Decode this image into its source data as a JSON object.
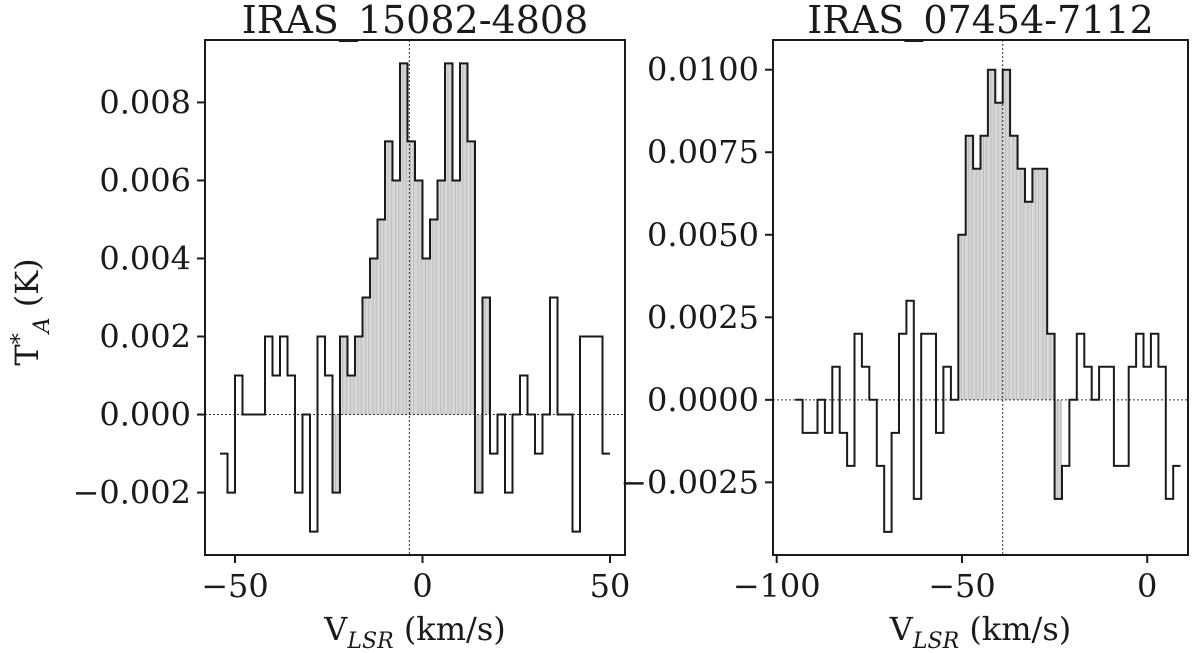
{
  "figure": {
    "ylabel": "T",
    "ylabel_sup": "*",
    "ylabel_sub": "A",
    "ylabel_unit": " (K)"
  },
  "chart_data": [
    {
      "type": "line",
      "step": "mid",
      "title": "IRAS_15082-4808",
      "xlabel": "V",
      "xlabel_sub": "LSR",
      "xlabel_unit": " (km/s)",
      "xlim": [
        -58,
        54
      ],
      "ylim": [
        -0.0036,
        0.0096
      ],
      "xticks": [
        -50,
        0,
        50
      ],
      "xtick_labels": [
        "−50",
        "0",
        "50"
      ],
      "yticks": [
        -0.002,
        0,
        0.002,
        0.004,
        0.006,
        0.008
      ],
      "ytick_labels": [
        "−0.002",
        "0.000",
        "0.002",
        "0.004",
        "0.006",
        "0.008"
      ],
      "vline": -3.5,
      "hline": 0,
      "fill_range": [
        -24,
        17
      ],
      "x": [
        -53,
        -51,
        -49,
        -47,
        -45,
        -43,
        -41,
        -39,
        -37,
        -35,
        -33,
        -31,
        -29,
        -27,
        -25,
        -23,
        -21,
        -19,
        -17,
        -15,
        -13,
        -11,
        -9,
        -7,
        -5,
        -3,
        -1,
        1,
        3,
        5,
        7,
        9,
        11,
        13,
        15,
        17,
        19,
        21,
        23,
        25,
        27,
        29,
        31,
        33,
        35,
        37,
        39,
        41,
        43,
        45,
        47,
        49
      ],
      "y": [
        -0.001,
        -0.002,
        0.001,
        0,
        0,
        0,
        0.002,
        0.001,
        0.002,
        0.001,
        -0.002,
        0,
        -0.003,
        0.002,
        0.001,
        -0.002,
        0.002,
        0.001,
        0.002,
        0.003,
        0.004,
        0.005,
        0.007,
        0.006,
        0.009,
        0.007,
        0.006,
        0.004,
        0.005,
        0.006,
        0.009,
        0.006,
        0.009,
        0.007,
        -0.002,
        0.003,
        -0.001,
        0,
        -0.002,
        0,
        0.001,
        0,
        -0.001,
        0,
        0.003,
        0,
        0,
        -0.003,
        0.002,
        0.002,
        0.002,
        -0.001
      ]
    },
    {
      "type": "line",
      "step": "mid",
      "title": "IRAS_07454-7112",
      "xlabel": "V",
      "xlabel_sub": "LSR",
      "xlabel_unit": " (km/s)",
      "xlim": [
        -101,
        11
      ],
      "ylim": [
        -0.0047,
        0.0109
      ],
      "xticks": [
        -100,
        -50,
        0
      ],
      "xtick_labels": [
        "−100",
        "−50",
        "0"
      ],
      "yticks": [
        -0.0025,
        0,
        0.0025,
        0.005,
        0.0075,
        0.01
      ],
      "ytick_labels": [
        "−0.0025",
        "0.0000",
        "0.0025",
        "0.0050",
        "0.0075",
        "0.0100"
      ],
      "vline": -39,
      "hline": 0,
      "fill_range": [
        -51,
        -23
      ],
      "x": [
        -94,
        -92,
        -90,
        -88,
        -86,
        -84,
        -82,
        -80,
        -78,
        -76,
        -74,
        -72,
        -70,
        -68,
        -66,
        -64,
        -62,
        -60,
        -58,
        -56,
        -54,
        -52,
        -50,
        -48,
        -46,
        -44,
        -42,
        -40,
        -38,
        -36,
        -34,
        -32,
        -30,
        -28,
        -26,
        -24,
        -22,
        -20,
        -18,
        -16,
        -14,
        -12,
        -10,
        -8,
        -6,
        -4,
        -2,
        0,
        2,
        4,
        6,
        8
      ],
      "y": [
        0,
        -0.001,
        -0.001,
        0,
        -0.001,
        0.001,
        -0.001,
        -0.002,
        0.002,
        0.001,
        0,
        -0.002,
        -0.004,
        -0.001,
        0.002,
        0.003,
        -0.003,
        0.002,
        0.002,
        -0.001,
        0.001,
        0,
        0.005,
        0.008,
        0.007,
        0.008,
        0.01,
        0.009,
        0.01,
        0.008,
        0.007,
        0.006,
        0.007,
        0.007,
        0.002,
        -0.003,
        -0.002,
        0,
        0.002,
        0.001,
        0,
        0.001,
        0.001,
        -0.002,
        -0.002,
        0.001,
        0.002,
        0.001,
        0.002,
        0.001,
        -0.003,
        -0.002
      ]
    }
  ]
}
